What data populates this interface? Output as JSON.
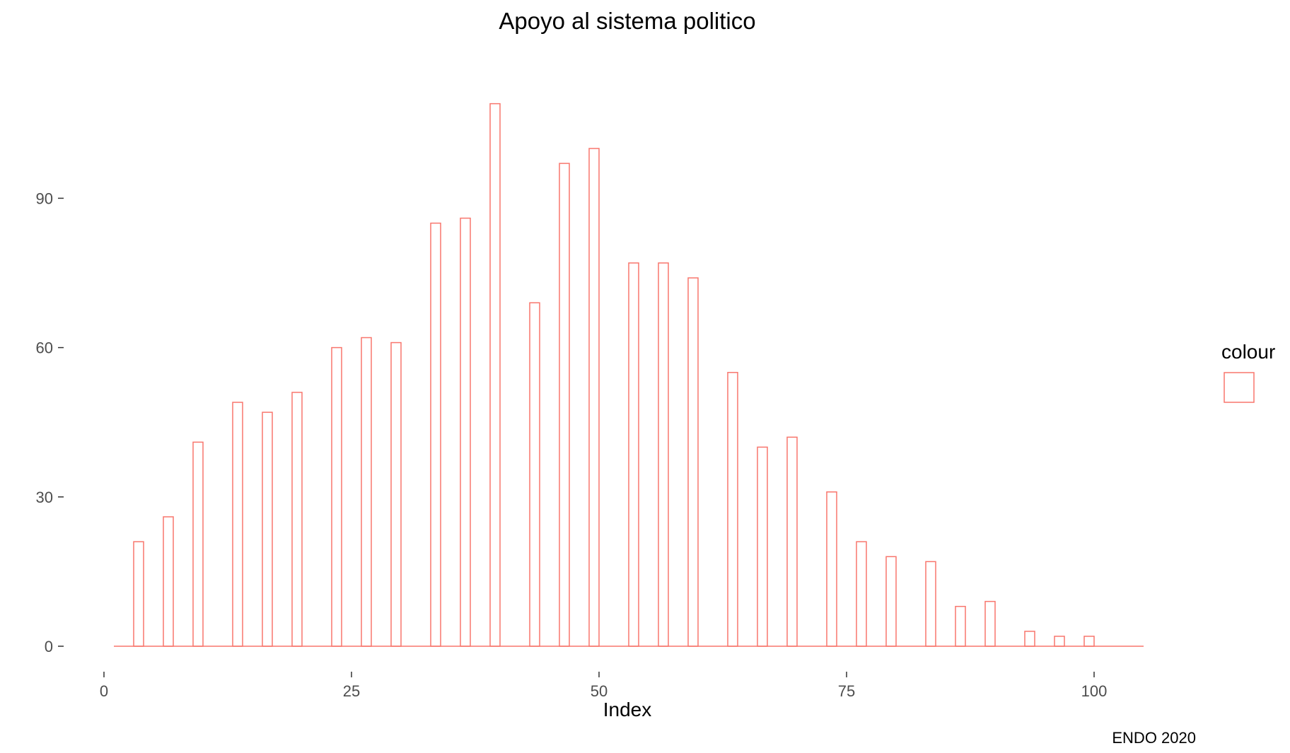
{
  "chart_data": {
    "type": "bar",
    "title": "Apoyo al sistema politico",
    "xlabel": "Index",
    "ylabel": "",
    "caption": "ENDO 2020",
    "legend": {
      "title": "colour",
      "position": "right"
    },
    "bar_color": "#F8766D",
    "grid": false,
    "x_ticks": [
      0,
      25,
      50,
      75,
      100
    ],
    "y_ticks": [
      0,
      30,
      60,
      90
    ],
    "xlim": [
      0,
      105
    ],
    "ylim": [
      0,
      110
    ],
    "baseline_x_range": [
      1,
      105
    ],
    "bar_width": 1,
    "x": [
      3.5,
      6.5,
      9.5,
      13.5,
      16.5,
      19.5,
      23.5,
      26.5,
      29.5,
      33.5,
      36.5,
      39.5,
      43.5,
      46.5,
      49.5,
      53.5,
      56.5,
      59.5,
      63.5,
      66.5,
      69.5,
      73.5,
      76.5,
      79.5,
      83.5,
      86.5,
      89.5,
      93.5,
      96.5,
      99.5
    ],
    "values": [
      21,
      26,
      41,
      49,
      47,
      51,
      60,
      62,
      61,
      85,
      86,
      109,
      69,
      97,
      100,
      77,
      77,
      74,
      55,
      40,
      42,
      31,
      21,
      18,
      17,
      8,
      9,
      3,
      2,
      2
    ]
  }
}
